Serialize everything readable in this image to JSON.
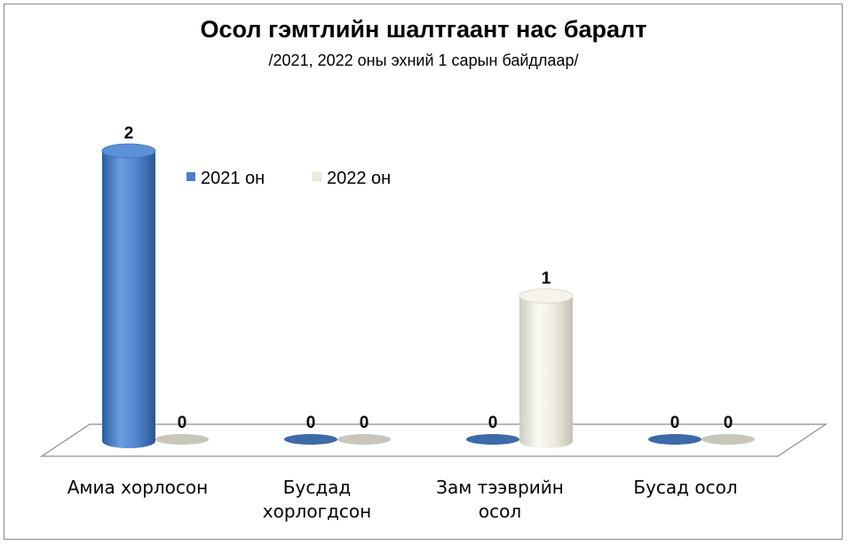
{
  "chart_data": {
    "type": "bar",
    "title": "Осол гэмтлийн шалтгаант нас баралт",
    "subtitle": "/2021, 2022 оны эхний 1 сарын байдлаар/",
    "categories": [
      [
        "Амиа хорлосон"
      ],
      [
        "Бусдад",
        "хорлогдсон"
      ],
      [
        "Зам тээврийн",
        "осол"
      ],
      [
        "Бусад осол"
      ]
    ],
    "series": [
      {
        "name": "2021 он",
        "values": [
          2,
          0,
          0,
          0
        ],
        "color": "#4a7ec4"
      },
      {
        "name": "2022 он",
        "values": [
          0,
          0,
          1,
          0
        ],
        "color": "#eeeadc"
      }
    ],
    "ylim": [
      0,
      2
    ],
    "legend": "top-center",
    "grid": false,
    "data_labels": true
  }
}
